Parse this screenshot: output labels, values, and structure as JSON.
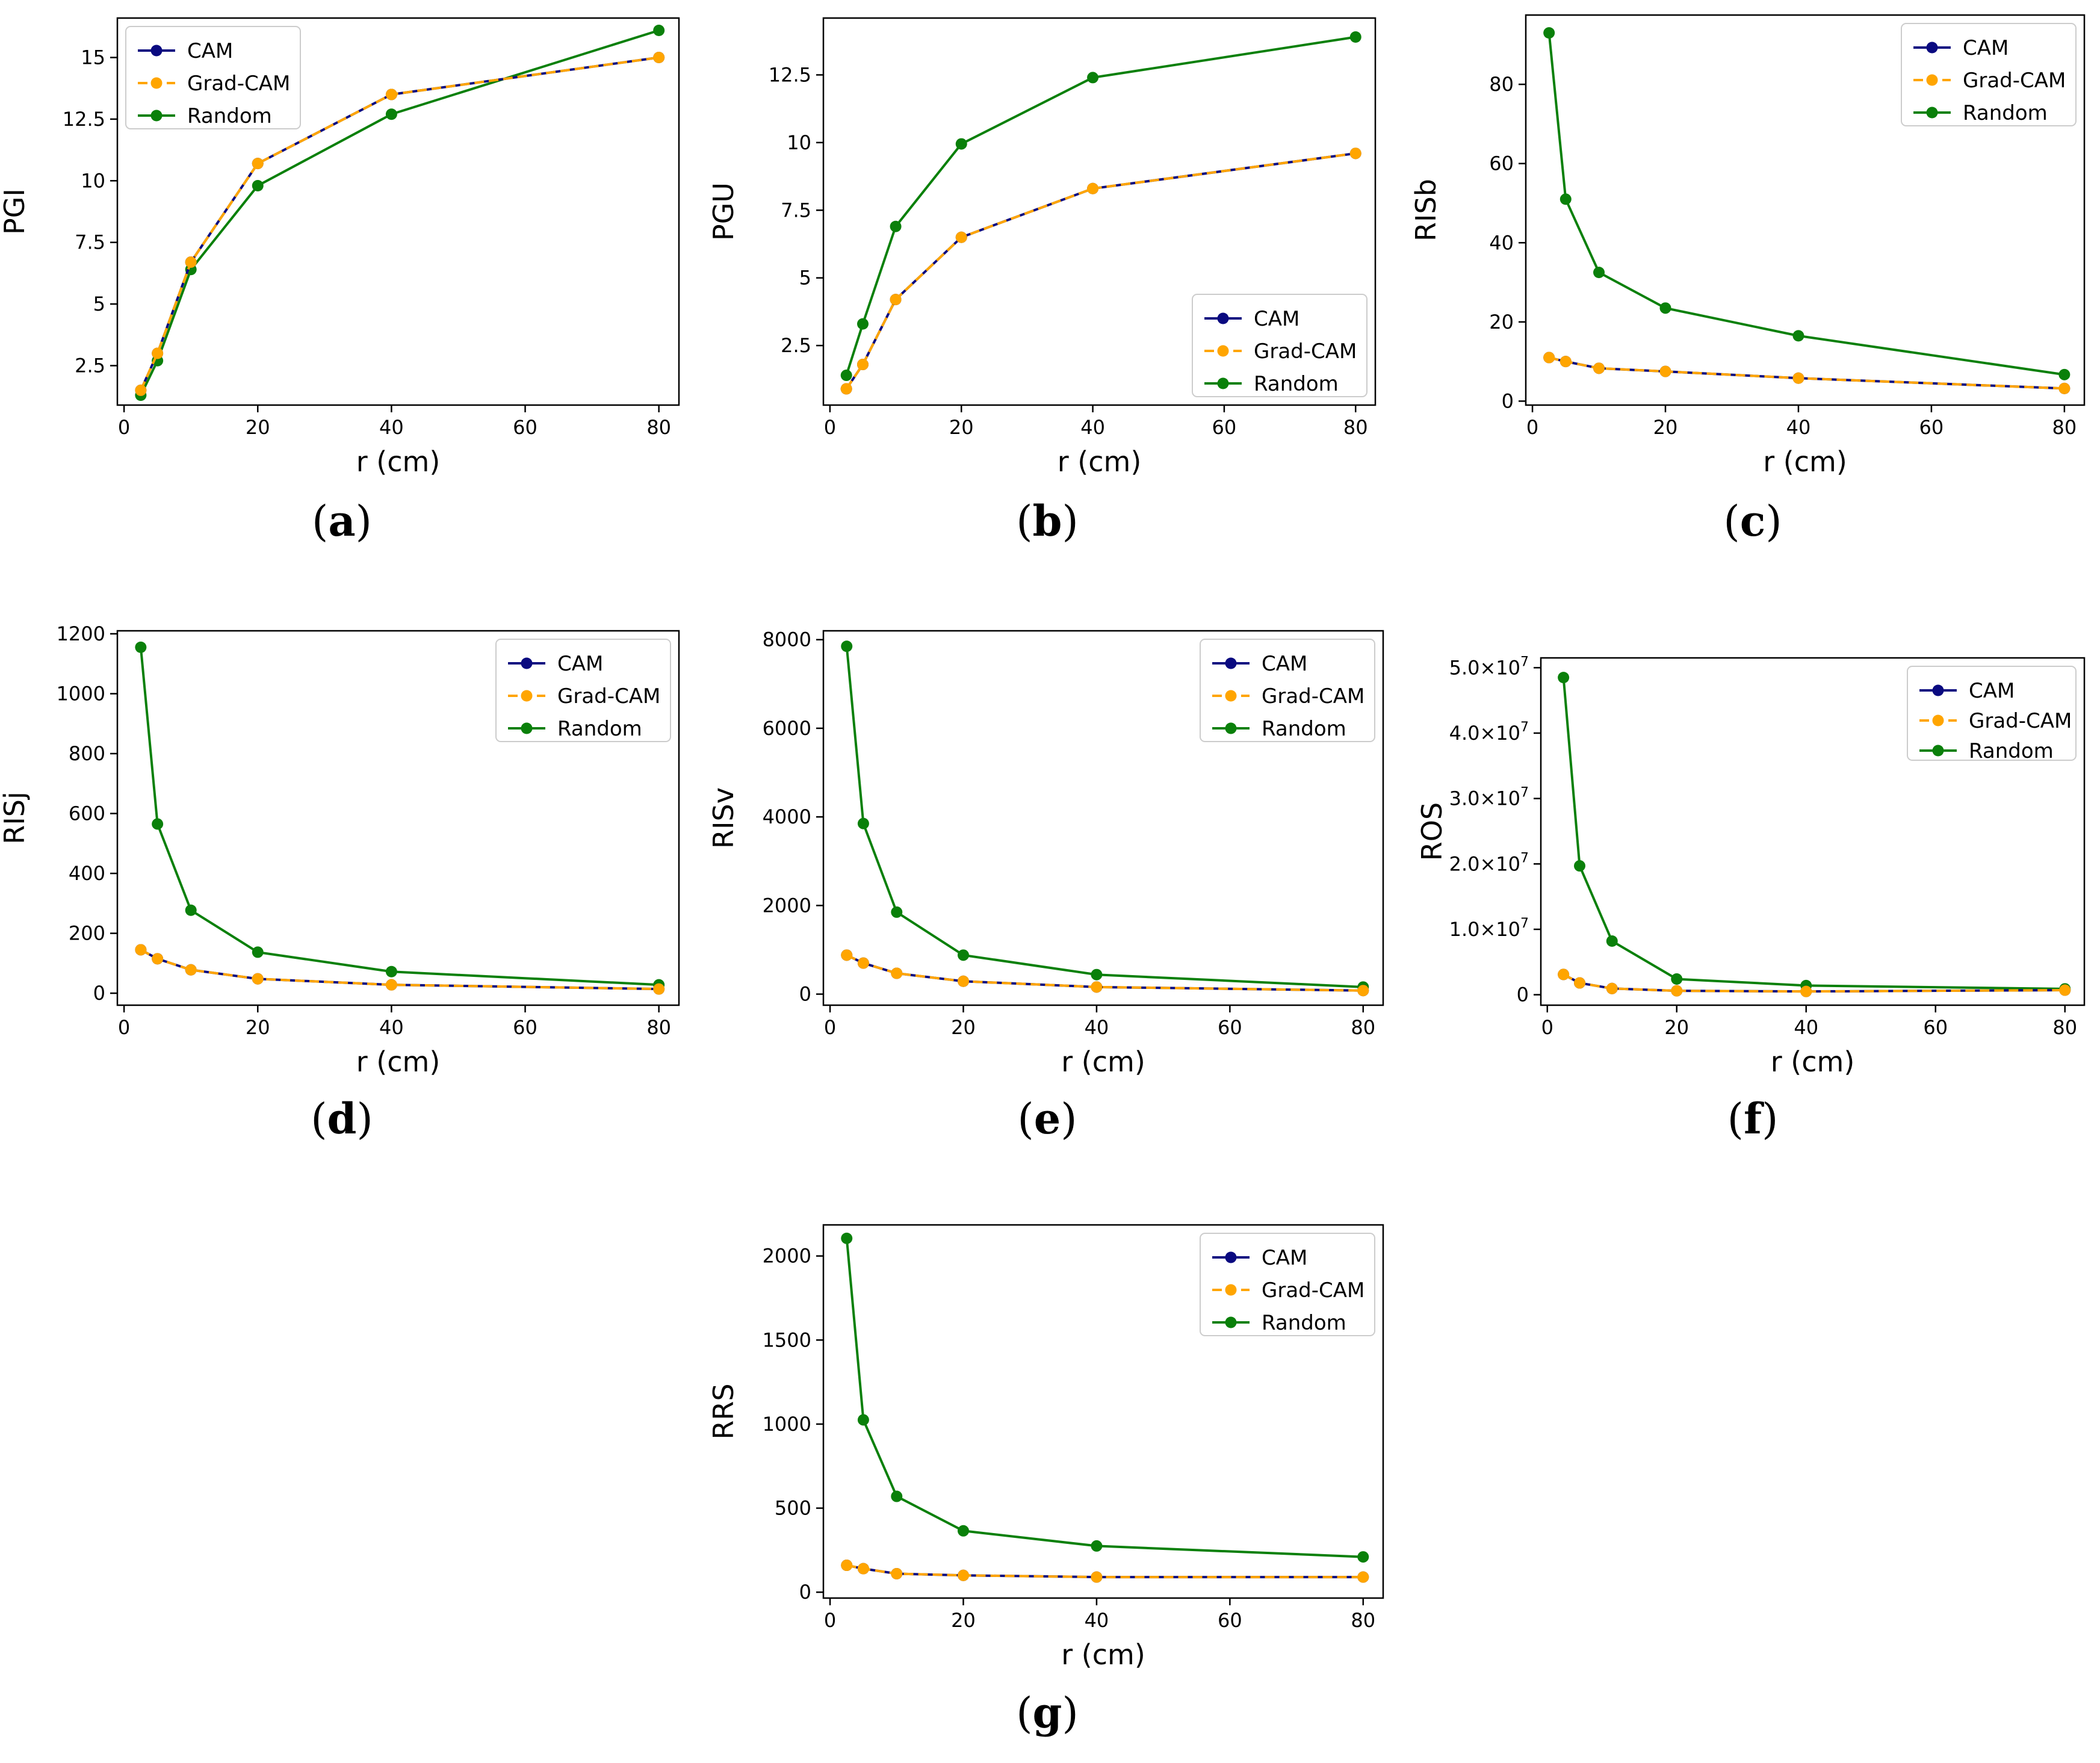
{
  "colors": {
    "CAM": "#0a0a80",
    "Grad-CAM": "#ffa500",
    "Random": "#0a800a"
  },
  "chart_data": [
    {
      "id": "a",
      "caption": "a",
      "type": "line",
      "xlabel": "r (cm)",
      "ylabel": "PGI",
      "xlim": [
        -1,
        83
      ],
      "ylim": [
        0.9,
        16.6
      ],
      "xticks": [
        0,
        20,
        40,
        60,
        80
      ],
      "xticklabels": [
        "0",
        "20",
        "40",
        "60",
        "80"
      ],
      "yticks": [
        2.5,
        5,
        7.5,
        10,
        12.5,
        15
      ],
      "yticklabels": [
        "2.5",
        "5",
        "7.5",
        "10",
        "12.5",
        "15"
      ],
      "legend": "top-left",
      "x": [
        2.5,
        5,
        10,
        20,
        40,
        80
      ],
      "series": [
        {
          "name": "CAM",
          "values": [
            1.5,
            3.0,
            6.7,
            10.7,
            13.5,
            15.0
          ]
        },
        {
          "name": "Grad-CAM",
          "values": [
            1.5,
            3.0,
            6.7,
            10.7,
            13.5,
            15.0
          ]
        },
        {
          "name": "Random",
          "values": [
            1.3,
            2.7,
            6.4,
            9.8,
            12.7,
            16.1
          ]
        }
      ]
    },
    {
      "id": "b",
      "caption": "b",
      "type": "line",
      "xlabel": "r (cm)",
      "ylabel": "PGU",
      "xlim": [
        -1,
        83
      ],
      "ylim": [
        0.3,
        14.6
      ],
      "xticks": [
        0,
        20,
        40,
        60,
        80
      ],
      "xticklabels": [
        "0",
        "20",
        "40",
        "60",
        "80"
      ],
      "yticks": [
        2.5,
        5,
        7.5,
        10,
        12.5
      ],
      "yticklabels": [
        "2.5",
        "5",
        "7.5",
        "10",
        "12.5"
      ],
      "legend": "bottom-right",
      "x": [
        2.5,
        5,
        10,
        20,
        40,
        80
      ],
      "series": [
        {
          "name": "CAM",
          "values": [
            0.9,
            1.8,
            4.2,
            6.5,
            8.3,
            9.6
          ]
        },
        {
          "name": "Grad-CAM",
          "values": [
            0.9,
            1.8,
            4.2,
            6.5,
            8.3,
            9.6
          ]
        },
        {
          "name": "Random",
          "values": [
            1.4,
            3.3,
            6.9,
            9.95,
            12.4,
            13.9
          ]
        }
      ]
    },
    {
      "id": "c",
      "caption": "c",
      "type": "line",
      "xlabel": "r (cm)",
      "ylabel": "RISb",
      "xlim": [
        -1,
        83
      ],
      "ylim": [
        -1,
        97.5
      ],
      "xticks": [
        0,
        20,
        40,
        60,
        80
      ],
      "xticklabels": [
        "0",
        "20",
        "40",
        "60",
        "80"
      ],
      "yticks": [
        0,
        20,
        40,
        60,
        80
      ],
      "yticklabels": [
        "0",
        "20",
        "40",
        "60",
        "80"
      ],
      "legend": "top-right",
      "x": [
        2.5,
        5,
        10,
        20,
        40,
        80
      ],
      "series": [
        {
          "name": "CAM",
          "values": [
            11,
            10,
            8.3,
            7.5,
            5.8,
            3.2
          ]
        },
        {
          "name": "Grad-CAM",
          "values": [
            11,
            10,
            8.3,
            7.5,
            5.8,
            3.2
          ]
        },
        {
          "name": "Random",
          "values": [
            93,
            51,
            32.5,
            23.5,
            16.5,
            6.7
          ]
        }
      ]
    },
    {
      "id": "d",
      "caption": "d",
      "type": "line",
      "xlabel": "r (cm)",
      "ylabel": "RISj",
      "xlim": [
        -1,
        83
      ],
      "ylim": [
        -40,
        1210
      ],
      "xticks": [
        0,
        20,
        40,
        60,
        80
      ],
      "xticklabels": [
        "0",
        "20",
        "40",
        "60",
        "80"
      ],
      "yticks": [
        0,
        200,
        400,
        600,
        800,
        1000,
        1200
      ],
      "yticklabels": [
        "0",
        "200",
        "400",
        "600",
        "800",
        "1000",
        "1200"
      ],
      "legend": "top-right",
      "x": [
        2.5,
        5,
        10,
        20,
        40,
        80
      ],
      "series": [
        {
          "name": "CAM",
          "values": [
            145,
            115,
            78,
            48,
            28,
            14
          ]
        },
        {
          "name": "Grad-CAM",
          "values": [
            145,
            115,
            78,
            48,
            28,
            14
          ]
        },
        {
          "name": "Random",
          "values": [
            1155,
            565,
            277,
            137,
            72,
            28
          ]
        }
      ]
    },
    {
      "id": "e",
      "caption": "e",
      "type": "line",
      "xlabel": "r (cm)",
      "ylabel": "RISv",
      "xlim": [
        -1,
        83
      ],
      "ylim": [
        -250,
        8200
      ],
      "xticks": [
        0,
        20,
        40,
        60,
        80
      ],
      "xticklabels": [
        "0",
        "20",
        "40",
        "60",
        "80"
      ],
      "yticks": [
        0,
        2000,
        4000,
        6000,
        8000
      ],
      "yticklabels": [
        "0",
        "2000",
        "4000",
        "6000",
        "8000"
      ],
      "legend": "top-right",
      "x": [
        2.5,
        5,
        10,
        20,
        40,
        80
      ],
      "series": [
        {
          "name": "CAM",
          "values": [
            880,
            700,
            470,
            290,
            160,
            80
          ]
        },
        {
          "name": "Grad-CAM",
          "values": [
            880,
            700,
            470,
            290,
            160,
            80
          ]
        },
        {
          "name": "Random",
          "values": [
            7850,
            3850,
            1850,
            880,
            440,
            160
          ]
        }
      ]
    },
    {
      "id": "f",
      "caption": "f",
      "type": "line",
      "xlabel": "r (cm)",
      "ylabel": "ROS",
      "xlim": [
        -1,
        83
      ],
      "ylim": [
        -1600000,
        51500000
      ],
      "xticks": [
        0,
        20,
        40,
        60,
        80
      ],
      "xticklabels": [
        "0",
        "20",
        "40",
        "60",
        "80"
      ],
      "yticks": [
        0,
        10000000,
        20000000,
        30000000,
        40000000,
        50000000
      ],
      "yticklabels": [
        "0",
        "1.0×10",
        "2.0×10",
        "3.0×10",
        "4.0×10",
        "5.0×10"
      ],
      "yticksup": [
        "",
        "7",
        "7",
        "7",
        "7",
        "7"
      ],
      "legend": "top-right",
      "x": [
        2.5,
        5,
        10,
        20,
        40,
        80
      ],
      "series": [
        {
          "name": "CAM",
          "values": [
            3100000,
            1800000,
            950000,
            600000,
            500000,
            700000
          ]
        },
        {
          "name": "Grad-CAM",
          "values": [
            3100000,
            1800000,
            950000,
            600000,
            500000,
            700000
          ]
        },
        {
          "name": "Random",
          "values": [
            48500000,
            19700000,
            8200000,
            2400000,
            1400000,
            900000
          ]
        }
      ]
    },
    {
      "id": "g",
      "caption": "g",
      "type": "line",
      "xlabel": "r (cm)",
      "ylabel": "RRS",
      "xlim": [
        -1,
        83
      ],
      "ylim": [
        -35,
        2185
      ],
      "xticks": [
        0,
        20,
        40,
        60,
        80
      ],
      "xticklabels": [
        "0",
        "20",
        "40",
        "60",
        "80"
      ],
      "yticks": [
        0,
        500,
        1000,
        1500,
        2000
      ],
      "yticklabels": [
        "0",
        "500",
        "1000",
        "1500",
        "2000"
      ],
      "legend": "top-right",
      "x": [
        2.5,
        5,
        10,
        20,
        40,
        80
      ],
      "series": [
        {
          "name": "CAM",
          "values": [
            160,
            140,
            110,
            100,
            90,
            90
          ]
        },
        {
          "name": "Grad-CAM",
          "values": [
            160,
            140,
            110,
            100,
            90,
            90
          ]
        },
        {
          "name": "Random",
          "values": [
            2105,
            1025,
            570,
            365,
            275,
            210
          ]
        }
      ]
    }
  ]
}
